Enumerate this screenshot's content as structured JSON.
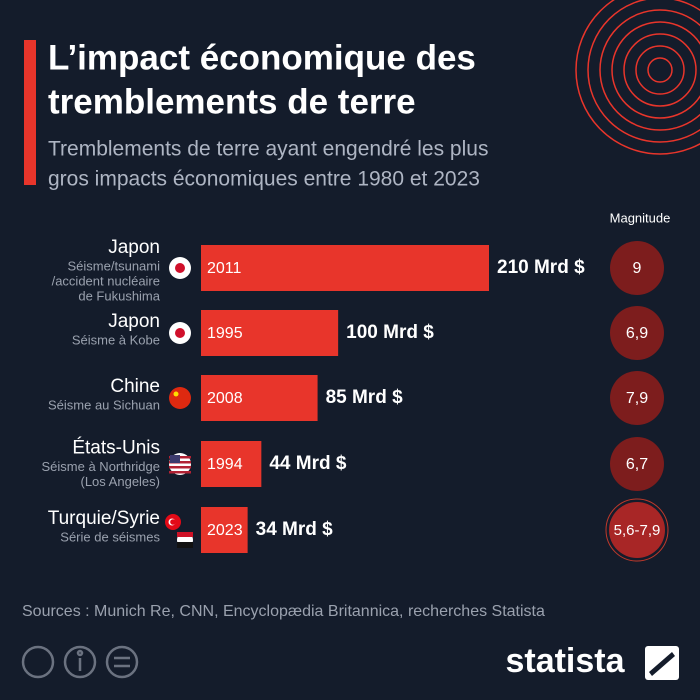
{
  "chart_data": {
    "type": "bar",
    "title_lines": [
      "L’impact économique des",
      "tremblements de terre"
    ],
    "subtitle_lines": [
      "Tremblements de terre ayant engendré les plus",
      "gros impacts économiques entre 1980 et 2023"
    ],
    "categories": [
      "Japon",
      "Japon",
      "Chine",
      "États-Unis",
      "Turquie/Syrie"
    ],
    "notes": [
      [
        "Séisme/tsunami",
        "/accident nucléaire",
        "de Fukushima"
      ],
      [
        "Séisme à Kobe"
      ],
      [
        "Séisme au Sichuan"
      ],
      [
        "Séisme à Northridge",
        "(Los Angeles)"
      ],
      [
        "Série de séismes"
      ]
    ],
    "years": [
      "2011",
      "1995",
      "2008",
      "1994",
      "2023"
    ],
    "values": [
      210,
      100,
      85,
      44,
      34
    ],
    "value_labels": [
      "210 Mrd $",
      "100 Mrd $",
      "85 Mrd $",
      "44 Mrd $",
      "34 Mrd $"
    ],
    "color": "#e8352b",
    "magnitude_title": "Magnitude",
    "magnitudes": [
      "9",
      "6,9",
      "7,9",
      "6,7",
      "5,6-7,9"
    ],
    "source": "Sources : Munich Re, CNN, Encyclopædia Britannica, recherches Statista",
    "brand": "statista"
  }
}
